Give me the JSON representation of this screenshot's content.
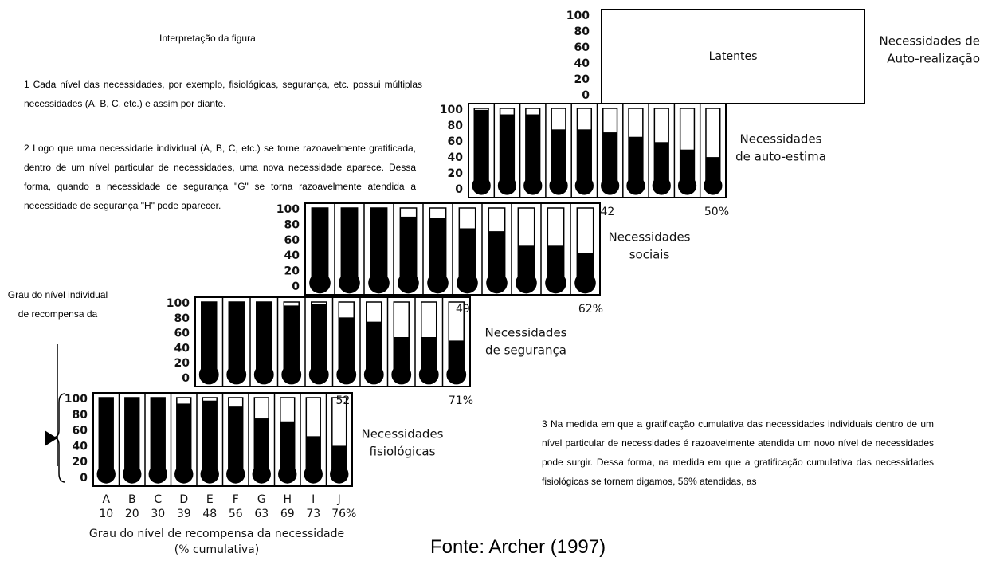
{
  "notes": {
    "title": "Interpretação da figura",
    "items": [
      "1 Cada nível das necessidades, por exemplo, fisiológicas, segurança, etc. possui múltiplas necessidades (A, B, C, etc.) e assim por diante.",
      "2 Logo que uma necessidade individual (A, B, C, etc.) se torne razoavelmente gratificada, dentro de um nível particular de necessidades, uma nova necessidade aparece. Dessa forma, quando a necessidade de segurança \"G\" se torna razoavelmente atendida a necessidade de segurança \"H\" pode aparecer."
    ]
  },
  "note3": "3 Na medida em que a gratificação cumulativa das necessidades individuais dentro de um nível particular de necessidades é razoavelmente atendida um novo nível de necessidades pode surgir. Dessa forma, na medida em que a gratificação cumulativa das necessidades fisiológicas se tornem digamos, 56% atendidas, as",
  "side_label": "Grau do nível individual de recompensa da",
  "levels": [
    {
      "name": [
        "Necessidades",
        "fisiológicas"
      ],
      "scale": [
        100,
        80,
        60,
        40,
        20,
        0
      ],
      "fills": [
        100,
        100,
        100,
        92,
        96,
        88,
        72,
        68,
        48,
        35
      ],
      "letters": [
        "A",
        "B",
        "C",
        "D",
        "E",
        "F",
        "G",
        "H",
        "I",
        "J"
      ],
      "cumulative": [
        "10",
        "20",
        "30",
        "39",
        "48",
        "56",
        "63",
        "69",
        "73",
        "76%"
      ]
    },
    {
      "name": [
        "Necessidades",
        "de segurança"
      ],
      "scale": [
        100,
        80,
        60,
        40,
        20,
        0
      ],
      "fills": [
        100,
        100,
        100,
        95,
        97,
        78,
        72,
        50,
        50,
        45
      ],
      "cumulative": [
        "52",
        "71%"
      ]
    },
    {
      "name": [
        "Necessidades",
        "sociais"
      ],
      "scale": [
        100,
        80,
        60,
        40,
        20,
        0
      ],
      "fills": [
        100,
        100,
        100,
        88,
        86,
        72,
        68,
        48,
        48,
        38
      ],
      "cumulative": [
        "49",
        "62%"
      ]
    },
    {
      "name": [
        "Necessidades",
        "de auto-estima"
      ],
      "scale": [
        100,
        80,
        60,
        40,
        20,
        0
      ],
      "fills": [
        98,
        92,
        92,
        72,
        72,
        68,
        62,
        55,
        45,
        35
      ],
      "cumulative": [
        "42",
        "50%"
      ]
    },
    {
      "name": [
        "Necessidades de",
        "Auto-realização"
      ],
      "scale": [
        100,
        80,
        60,
        40,
        20,
        0
      ],
      "box_label": "Latentes"
    }
  ],
  "x_axis_label": [
    "Grau do nível de recompensa da necessidade",
    "(% cumulativa)"
  ],
  "source": "Fonte: Archer (1997)"
}
